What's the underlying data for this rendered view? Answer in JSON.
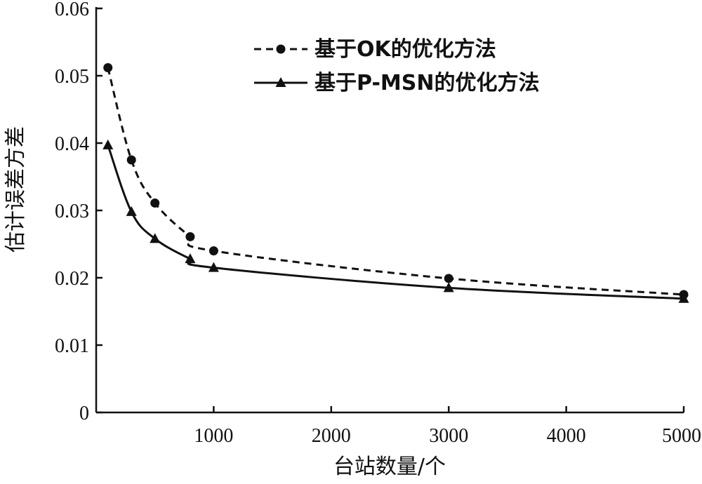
{
  "chart_data": {
    "type": "line",
    "title": "",
    "xlabel": "台站数量/个",
    "ylabel": "估计误差方差",
    "xlim": [
      0,
      5000
    ],
    "ylim": [
      0,
      0.06
    ],
    "xticks": [
      1000,
      2000,
      3000,
      4000,
      5000
    ],
    "yticks": [
      0,
      0.01,
      0.02,
      0.03,
      0.04,
      0.05,
      0.06
    ],
    "xtick_labels": [
      "1000",
      "2000",
      "3000",
      "4000",
      "5000"
    ],
    "ytick_labels": [
      "0",
      "0.01",
      "0.02",
      "0.03",
      "0.04",
      "0.05",
      "0.06"
    ],
    "grid": false,
    "legend_position": "top-right",
    "series": [
      {
        "name": "基于OK的优化方法",
        "line_style": "dashed",
        "marker": "circle",
        "color": "#111111",
        "x": [
          100,
          300,
          500,
          800,
          1000,
          3000,
          5000
        ],
        "y": [
          0.0512,
          0.0375,
          0.0311,
          0.0261,
          0.024,
          0.0199,
          0.0175
        ]
      },
      {
        "name": "基于P-MSN的优化方法",
        "line_style": "solid",
        "marker": "triangle",
        "color": "#111111",
        "x": [
          100,
          300,
          500,
          800,
          1000,
          3000,
          5000
        ],
        "y": [
          0.0397,
          0.0298,
          0.0258,
          0.0228,
          0.0215,
          0.0185,
          0.0169
        ]
      }
    ]
  }
}
